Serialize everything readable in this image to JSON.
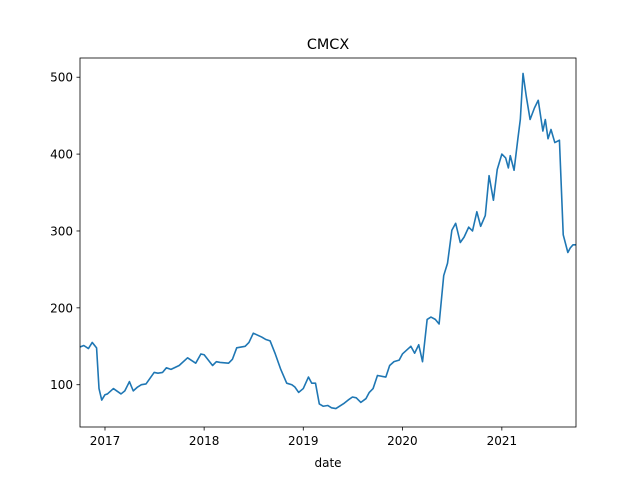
{
  "chart_data": {
    "type": "line",
    "title": "CMCX",
    "xlabel": "date",
    "ylabel": "",
    "xlim": [
      "2016-10-01",
      "2021-10-01"
    ],
    "ylim": [
      45,
      525
    ],
    "x_ticks": [
      "2017",
      "2018",
      "2019",
      "2020",
      "2021"
    ],
    "y_ticks": [
      100,
      200,
      300,
      400,
      500
    ],
    "grid": false,
    "color": "#1f77b4",
    "series": [
      {
        "x": [
          "2016-10-01",
          "2016-10-15",
          "2016-11-01",
          "2016-11-15",
          "2016-12-01",
          "2016-12-10",
          "2016-12-20",
          "2017-01-01",
          "2017-01-10",
          "2017-02-01",
          "2017-03-01",
          "2017-03-15",
          "2017-04-01",
          "2017-04-15",
          "2017-05-01",
          "2017-05-15",
          "2017-06-01",
          "2017-07-01",
          "2017-07-15",
          "2017-08-01",
          "2017-08-15",
          "2017-09-01",
          "2017-10-01",
          "2017-11-01",
          "2017-12-01",
          "2017-12-20",
          "2018-01-01",
          "2018-02-01",
          "2018-02-15",
          "2018-03-01",
          "2018-04-01",
          "2018-04-15",
          "2018-05-01",
          "2018-06-01",
          "2018-06-15",
          "2018-07-01",
          "2018-08-01",
          "2018-08-15",
          "2018-09-01",
          "2018-09-20",
          "2018-10-10",
          "2018-11-01",
          "2018-11-20",
          "2018-12-01",
          "2018-12-15",
          "2019-01-01",
          "2019-01-20",
          "2019-02-01",
          "2019-02-15",
          "2019-03-01",
          "2019-03-15",
          "2019-04-01",
          "2019-04-15",
          "2019-05-01",
          "2019-06-01",
          "2019-06-15",
          "2019-07-01",
          "2019-07-15",
          "2019-08-01",
          "2019-08-20",
          "2019-09-01",
          "2019-09-15",
          "2019-10-01",
          "2019-11-01",
          "2019-11-15",
          "2019-12-01",
          "2019-12-20",
          "2020-01-01",
          "2020-02-01",
          "2020-02-15",
          "2020-03-01",
          "2020-03-15",
          "2020-04-01",
          "2020-04-15",
          "2020-05-01",
          "2020-05-15",
          "2020-06-01",
          "2020-06-15",
          "2020-07-01",
          "2020-07-15",
          "2020-08-01",
          "2020-08-15",
          "2020-09-01",
          "2020-09-15",
          "2020-10-01",
          "2020-10-15",
          "2020-11-01",
          "2020-11-15",
          "2020-12-01",
          "2020-12-15",
          "2021-01-01",
          "2021-01-15",
          "2021-01-25",
          "2021-02-01",
          "2021-02-15",
          "2021-03-01",
          "2021-03-10",
          "2021-03-20",
          "2021-04-01",
          "2021-04-15",
          "2021-05-01",
          "2021-05-15",
          "2021-06-01",
          "2021-06-10",
          "2021-06-20",
          "2021-07-01",
          "2021-07-15",
          "2021-08-01",
          "2021-08-15",
          "2021-09-01",
          "2021-09-10",
          "2021-09-20",
          "2021-10-01"
        ],
        "values": [
          149,
          151,
          147,
          155,
          148,
          95,
          80,
          87,
          88,
          95,
          88,
          92,
          104,
          92,
          97,
          100,
          101,
          116,
          115,
          116,
          122,
          120,
          125,
          135,
          128,
          140,
          139,
          125,
          130,
          129,
          128,
          133,
          148,
          150,
          155,
          167,
          162,
          159,
          157,
          140,
          120,
          102,
          100,
          97,
          90,
          95,
          110,
          102,
          102,
          75,
          72,
          73,
          70,
          69,
          76,
          80,
          84,
          83,
          77,
          82,
          90,
          95,
          112,
          110,
          125,
          130,
          132,
          140,
          150,
          141,
          152,
          130,
          185,
          188,
          185,
          179,
          242,
          258,
          301,
          310,
          285,
          292,
          305,
          300,
          325,
          306,
          320,
          372,
          340,
          380,
          400,
          395,
          382,
          398,
          379,
          420,
          445,
          505,
          475,
          445,
          460,
          470,
          430,
          445,
          420,
          432,
          415,
          418,
          295,
          272,
          278,
          282,
          282
        ]
      }
    ]
  }
}
